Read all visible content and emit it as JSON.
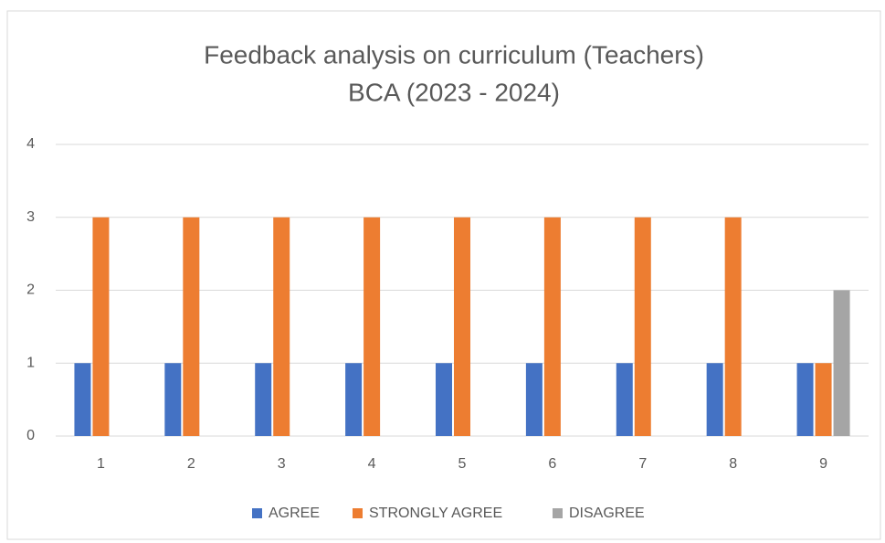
{
  "chart_data": {
    "type": "bar",
    "title": "Feedback analysis on curriculum (Teachers)",
    "subtitle": "BCA (2023 - 2024)",
    "categories": [
      "1",
      "2",
      "3",
      "4",
      "5",
      "6",
      "7",
      "8",
      "9"
    ],
    "series": [
      {
        "name": "AGREE",
        "color": "#4472c4",
        "values": [
          1,
          1,
          1,
          1,
          1,
          1,
          1,
          1,
          1
        ]
      },
      {
        "name": "STRONGLY AGREE",
        "color": "#ed7d31",
        "values": [
          3,
          3,
          3,
          3,
          3,
          3,
          3,
          3,
          1
        ]
      },
      {
        "name": "DISAGREE",
        "color": "#a5a5a5",
        "values": [
          0,
          0,
          0,
          0,
          0,
          0,
          0,
          0,
          2
        ]
      }
    ],
    "ylim": [
      0,
      4
    ],
    "yticks": [
      0,
      1,
      2,
      3,
      4
    ],
    "grid": true,
    "legend": "bottom"
  }
}
